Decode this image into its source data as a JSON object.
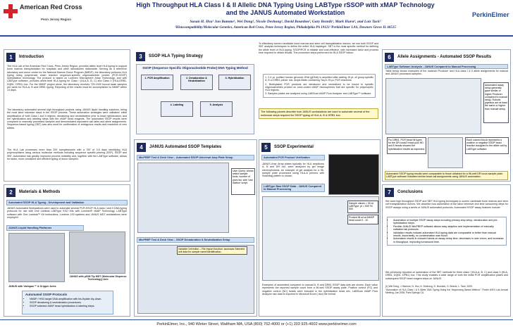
{
  "header": {
    "org_name": "American Red Cross",
    "org_region": "Penn Jersey Region",
    "sponsor": "PerkinElmer",
    "title_line1": "High Throughput HLA Class I & II Allelic DNA Typing Using LABType rSSOP with xMAP Technology",
    "title_line2": "and the JANUS Automated Workstation",
    "authors": "Susan H. Hsu¹ Jon Bamme¹, Wei Dong¹, Nicole Deshong¹, David Bourdon², Gary Beznik², Mark Hurst², and Lois Tack²",
    "affiliations": "¹Histocompatibility/Molecular Genetics, American Red Cross, Penn-Jersey Region, Philadelphia PA 19123     ²PerkinElmer LAS, Downers Grove IL 60515"
  },
  "sections": [
    {
      "number": "1",
      "title": "Introduction",
      "paragraphs": [
        "The HLA Lab of the American Red Cross, Penn Jersey Region, provides allelic level HLA typing to support bone marrow transplantation for hospitals and other laboratories nationwide. Serving as a reference laboratory and donor center for the National Marrow Donor Program (NMDP), the laboratory performs HLA typing using polymerase chain reaction sequence-specific oligonucleotide probes (PCR-SSOP) hybridization technology. The protocol is based on Luminex Microsphere Array Technology, and with LABType software, provides allele-level HLA typing for Class I (HLA-A, B, C) and Class II (HLA-DRB1, DQB1, DPB1) loci. For the NMDP project alone, the laboratory receives 725-1000 buccal swab samples per week for HLA-A, B and DRB1 typing. Reporting of the results must be accomplished to NMDP within 14 days.",
        "The laboratory automated several high throughput projects using JANUS liquid handling solutions, being the most labor intensive steps in the SSOP process. These automation strategies were validated: initial amplification of both Class I and II regions, denaturing and neutralization prior to bead hybridization, and the hybridization and labeling steps with the xMAP bead reagents. The automated SSOP results were compared to manually processed samples and demonstrated equivalent call rates and allele assignments. Sequence-based typing (SBT) was also used for confirmation of ambiguous results and resolution of new alleles.",
        "The HLA Lab processes more than 200 samples/week with a TAT of 3-5 days identifying HLA polymorphisms using various molecular methods including sequence specific priming (SSP), SSOP and SBT. Automation has greatly improved process reliability and, together with the LABType software, allows for faster, more consistent and efficient typing of donor samples."
      ]
    },
    {
      "number": "2",
      "title": "Materials & Methods",
      "subheading": "Automated SSOP HLA Typing - Development and Validation",
      "paragraph": "JANUS Automated Workstations were used to automate several PCR-SSOP HLA class I and II DNA typing protocols for use with One Lambda LABType SSO Kits with Luminex® xMAP Technology. LABType software with One Lambda™ Kit instructions, Luminex 100 systems and JANUS MDT workstations were employed.",
      "figure_bar": "JANUS Liquid Handling Platforms",
      "caption_left": "JANUS with Varispan™ & Gripper Arms",
      "caption_right": "JANUS with pSiM Tip MDT (Molecular Dispense Technology) Arm",
      "protocols_title": "Automated SSOP Protocols",
      "protocols": [
        "NMDP / HSG target DNA amplification with bis-thylate dry-down.",
        "SSOP denaturing & neutralization procedures.",
        "SSOP selected xMAP bead hybridization & labeling steps."
      ]
    },
    {
      "number": "3",
      "title": "SSOP HLA Typing Strategy",
      "diagram_title": "SSOP (Sequence Specific Oligonucleotide Probe) DNA Typing Method",
      "steps": [
        "1. PCR Amplification",
        "2. Denaturation & Neutralization",
        "3. Hybridization",
        "4. Labeling",
        "5. Analysis"
      ],
      "intro": "To effectively screen candidate bone marrow and stem cell transplantation donors, we use both SSOP and SBT analysis techniques to define the entire HLA haplotype. SBT is the most specific method for defining the allele level of HLA typing. SSOP/PCR is reliable and cost-effective, with increased labor and process time required to obtain results. The procedure steps performed for HLA SSOP follow:",
      "list": [
        "1. 2-4 µL purified human genomic DNA (gDNA) is amplified after adding 15 µL of group-specific A, B or DRB1 primer mix. Ampli-Biotin-containing Taq in 25 µL PCR reactions.",
        "2. Biotinylated PCR products are denatured and neutralized to be bound to specific oligonucleotides probed on color-coded xMAP microspheres that are specific for polymorphic HLA regions.",
        "3. Samples plates are analyzed using LABScan xMAP Flow Analyzer and LABType™ software."
      ],
      "closing": "The following panels describe how JANUS workstations are used to automate several of the molecular steps required for SSOP typing of HLA-A, B & DRB1 loci."
    },
    {
      "number": "4",
      "title": "JANUS Automated SSOP Templates",
      "bar1": "MicPREP Test & Deck View – Automated SSOP Universal Amp Plate Setup",
      "note1": "User Query: shows select sample tools, number of work list, with 'Use Station' script.",
      "bar2": "MicPREP Test & Deck View – SSOP Denaturation & Neutralization Setup",
      "note2": "Variable Cell editor – File import function: accesses Selected cell data for sample name/identification."
    },
    {
      "number": "5",
      "title": "SSOP Experimental",
      "bar1": "Automated PCR Product Verification",
      "text1": "JANUS Amp Array plates typically for HLA amplicons A, B and DR loci, were analyzed by gel image electrophoresis. An example of gel analysis for a 96-sample plate processed using HLA-A primers with ScanMag pattern is shown.",
      "bar2": "LABType Raw SSOP Data - JANUS Compared to Manual Processing",
      "label1": "Sample values > 50 at LABType: pt = 500 %/ 500",
      "label2": "Product fill wt at MMSP bead count 0 - 10",
      "caption": "Examples of automated compared to manual A, B and DRB1 SSOP data sets are shown. Each value represents the reported sample count from a 96-well SSOP assay plate. Positive control (PC) and negative control (NC) beads were included in the hybridization bead mix. LABScan xMAP Flow Analyzer raw data is exported in Microsoft Excel (.xlsx) file format."
    },
    {
      "number": "6",
      "title": "Allele Assignments - Automated SSOP Results",
      "bar1": "LABType Software Analysis - JANUS Compared to Manual Processing",
      "text1": "Table below shows examples of the matched Producer and HLA class I & II allele assignments for manual and JANUS processed samples.",
      "side": "Automated assay setup generally gave similar or higher Producer compared to manual setup. Robotic pipettors are at least the same or higher than manual setup.",
      "note_left": "For DRB1, PCR bead hit types for the DR-rows/2 bead pool HD and 5 beads showed the hybridization results as expected.",
      "note_right": "Each colored block represents a positive or negative SSOP bead reaction assigned to the allele call by LABType software.",
      "caption": "Automated SSOP typing results were comparable to those obtained for a 96-well DR locus sample plate. LABType software indicated similar bead call assignments using JANUS automation."
    },
    {
      "number": "7",
      "title": "Conclusions",
      "paragraph": "We used high throughput SSOP and SBT HLA typing techniques to screen candidate bone marrow and stem cell transplantation donors. We describe how automation of the labor intensive and time consuming steps for SSOP assays using a series of JANUS automated protocols. Automated SSOP assay features include:",
      "bullets": [
        "Automation of multiple SSOP assay steps including primary amp setup, denaturation and pre-hybridization steps.",
        "Flexible JANUS WinPREP software allows easy adaption and implementation of manually validated lab protocols.",
        "Validation results indicate automated HLA typing data are comparable or better than manual results, importantly, no contamination was found.",
        "Automation results in reduced hands-on assay setup time, decreases in user errors, and increases in throughput, improving turnaround time."
      ],
      "closing": "We previously reported on automation of the SBT methods for three class I (HLA-A, B, C) and class II (HLA-DRB1, DQB1, DPB1) loci. This study enables a wide range of both the initial PCR amplification plates and subsequent SSOP bead reagent steps on JANUS.",
      "references": [
        "[1] Wei Dong, J. Bamme, N. Hsu, N. Deshong, D. Bourdon, G. Beznik, L. Tack, 2009.",
        "\"Automation of HLA Class I & II Allele DNA Typing Using the Sequencing Based Method.\" Poster ASHI Lab Annual Meeting, Jan 2008, Palm Springs CA."
      ]
    }
  ],
  "footer": "PerkinElmer, Inc., 940 Winter Street, Waltham MA, USA (800) 762-4000 or (+1) 203 925-4602 www.perkinelmer.com"
}
